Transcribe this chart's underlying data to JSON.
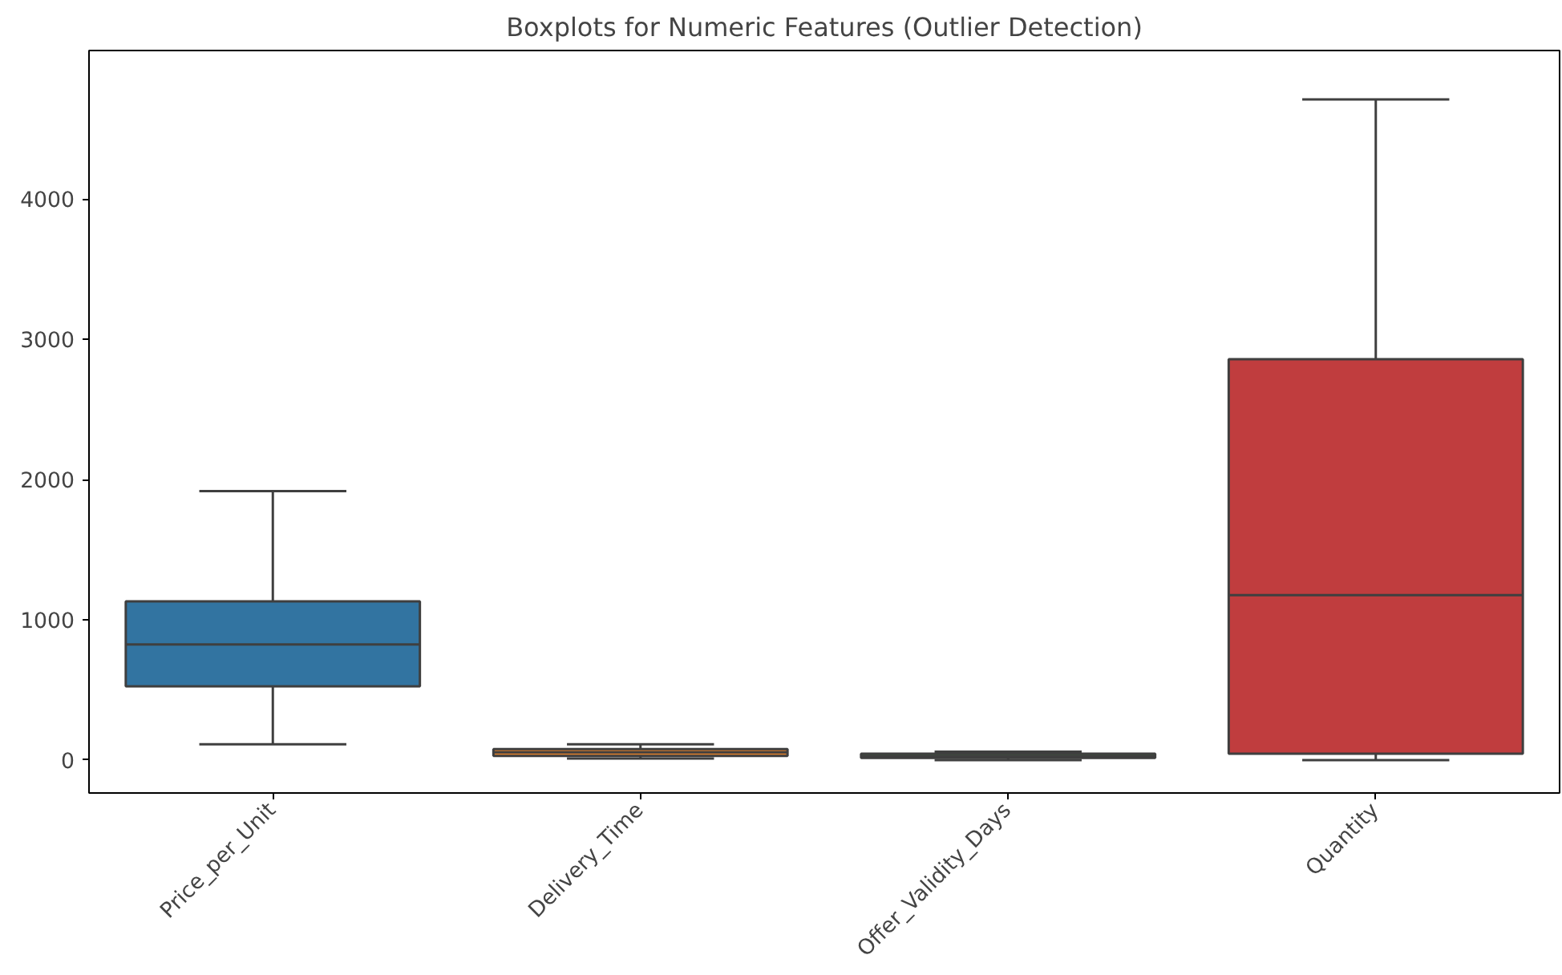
{
  "chart_data": {
    "type": "box",
    "title": "Boxplots for Numeric Features (Outlier Detection)",
    "categories": [
      "Price_per_Unit",
      "Delivery_Time",
      "Offer_Validity_Days",
      "Quantity"
    ],
    "colors": [
      "#3274a1",
      "#e1812c",
      "#3a923a",
      "#c03d3e"
    ],
    "boxes": [
      {
        "low": 112,
        "q1": 526,
        "median": 825,
        "q3": 1131,
        "high": 1918
      },
      {
        "low": 11,
        "q1": 30,
        "median": 55,
        "q3": 78,
        "high": 112
      },
      {
        "low": 0,
        "q1": 15,
        "median": 30,
        "q3": 45,
        "high": 60
      },
      {
        "low": 0,
        "q1": 45,
        "median": 1176,
        "q3": 2859,
        "high": 4711
      }
    ],
    "ylim": [
      -235,
      5060
    ],
    "yticks": [
      0,
      1000,
      2000,
      3000,
      4000
    ],
    "grid": false
  }
}
